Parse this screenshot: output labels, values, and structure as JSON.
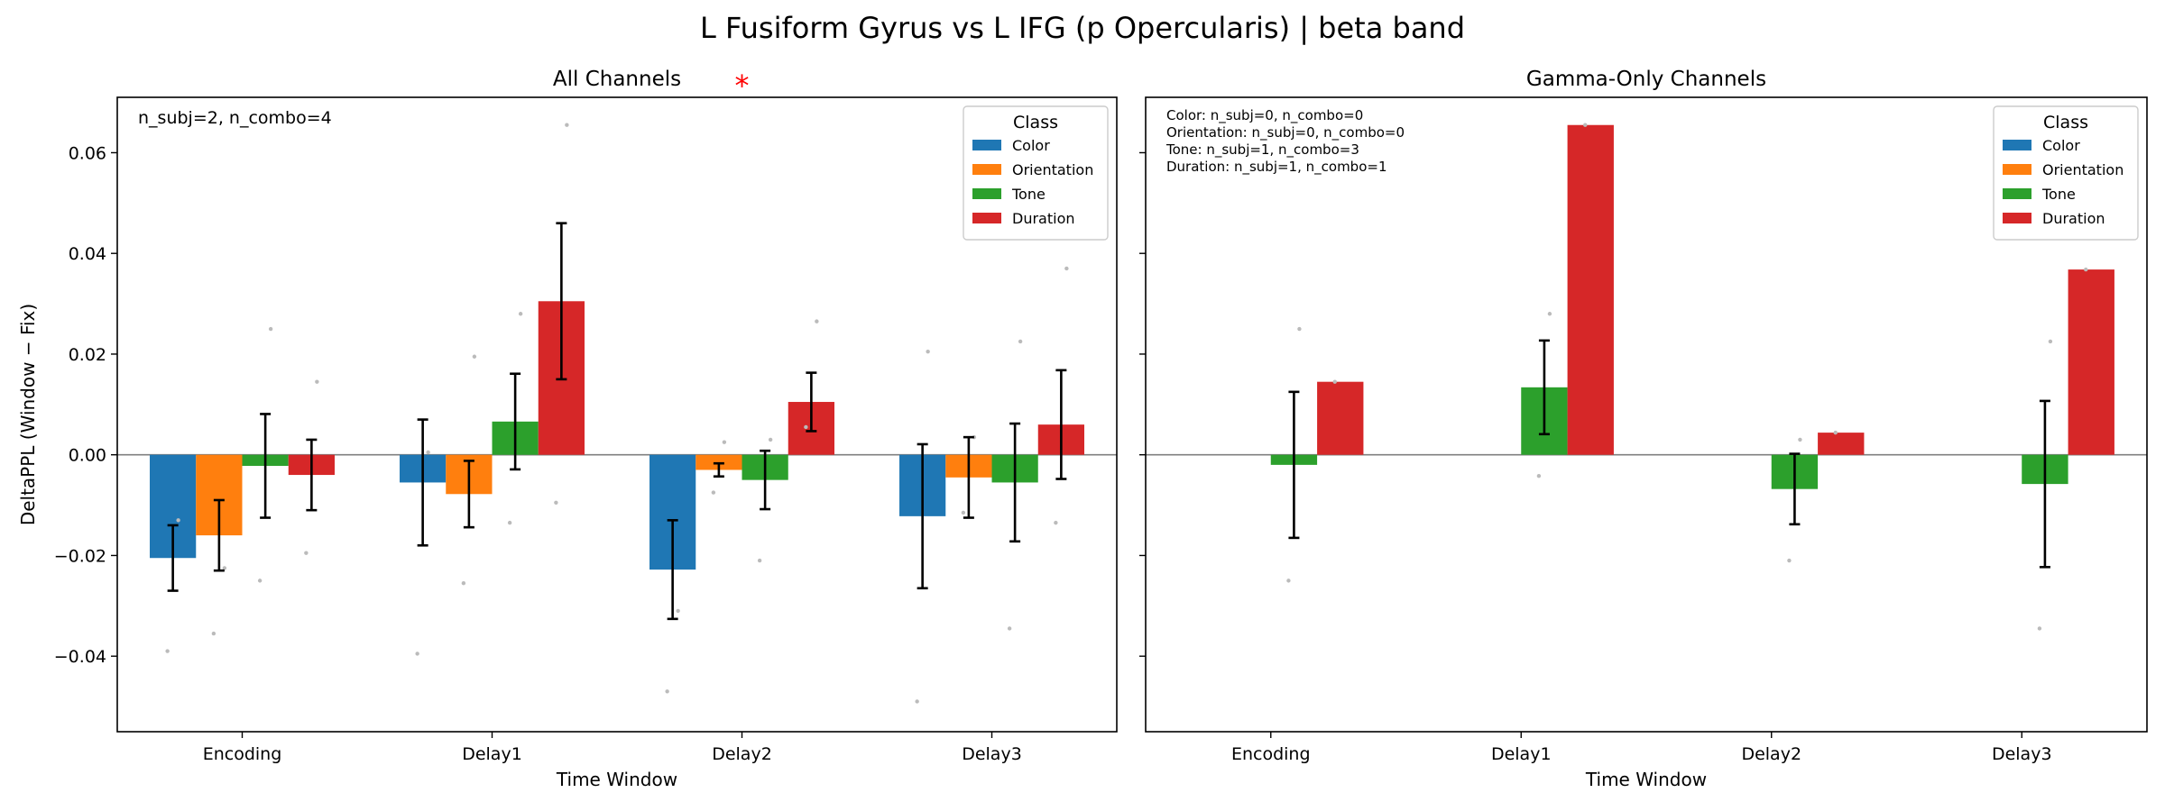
{
  "figure": {
    "title": "L Fusiform Gyrus vs L IFG (p Opercularis)  |  beta band"
  },
  "colors": {
    "Color": "#1f77b4",
    "Orientation": "#ff7f0e",
    "Tone": "#2ca02c",
    "Duration": "#d62728",
    "zero_line": "#808080",
    "error_bar": "#000000",
    "point": "#bbbbbb",
    "significance": "#ff0000"
  },
  "chart_data": [
    {
      "type": "bar",
      "title": "All Channels",
      "xlabel": "Time Window",
      "ylabel": "DeltaPPL (Window − Fix)",
      "categories": [
        "Encoding",
        "Delay1",
        "Delay2",
        "Delay3"
      ],
      "ylim": [
        -0.055,
        0.071
      ],
      "yticks": [
        -0.04,
        -0.02,
        0.0,
        0.02,
        0.04,
        0.06
      ],
      "ytick_labels": [
        "−0.04",
        "−0.02",
        "0.00",
        "0.02",
        "0.04",
        "0.06"
      ],
      "annotation": "n_subj=2, n_combo=4",
      "significance": [
        {
          "category": "Delay2",
          "label": "*"
        }
      ],
      "legend": {
        "title": "Class",
        "position": "top-right"
      },
      "series": [
        {
          "name": "Color",
          "values": [
            -0.0205,
            -0.0055,
            -0.0228,
            -0.0122
          ],
          "errors": [
            0.0065,
            0.0125,
            0.0098,
            0.0143
          ],
          "points": [
            [
              -0.039,
              -0.013
            ],
            [
              -0.0395,
              0.0005
            ],
            [
              -0.047,
              -0.031
            ],
            [
              -0.049,
              0.0205
            ]
          ]
        },
        {
          "name": "Orientation",
          "values": [
            -0.016,
            -0.0078,
            -0.003,
            -0.0045
          ],
          "errors": [
            0.007,
            0.0066,
            0.0013,
            0.008
          ],
          "points": [
            [
              -0.0355,
              -0.0225
            ],
            [
              -0.0255,
              0.0195
            ],
            [
              -0.0075,
              0.0025
            ],
            [
              -0.0115,
              0.0035
            ]
          ]
        },
        {
          "name": "Tone",
          "values": [
            -0.0022,
            0.0066,
            -0.005,
            -0.0055
          ],
          "errors": [
            0.0103,
            0.0095,
            0.0058,
            0.0117
          ],
          "points": [
            [
              -0.025,
              0.025
            ],
            [
              -0.0135,
              0.028
            ],
            [
              -0.021,
              0.003
            ],
            [
              -0.0345,
              0.0225
            ]
          ]
        },
        {
          "name": "Duration",
          "values": [
            -0.004,
            0.0305,
            0.0105,
            0.006
          ],
          "errors": [
            0.007,
            0.0155,
            0.0058,
            0.0108
          ],
          "points": [
            [
              -0.0195,
              0.0145
            ],
            [
              -0.0095,
              0.0655
            ],
            [
              0.0055,
              0.0265
            ],
            [
              -0.0135,
              0.037
            ]
          ]
        }
      ]
    },
    {
      "type": "bar",
      "title": "Gamma-Only Channels",
      "xlabel": "Time Window",
      "ylabel": "",
      "categories": [
        "Encoding",
        "Delay1",
        "Delay2",
        "Delay3"
      ],
      "ylim": [
        -0.055,
        0.071
      ],
      "yticks": [
        -0.04,
        -0.02,
        0.0,
        0.02,
        0.04,
        0.06
      ],
      "annotation_lines": [
        "Color: n_subj=0, n_combo=0",
        "Orientation: n_subj=0, n_combo=0",
        "Tone: n_subj=1, n_combo=3",
        "Duration: n_subj=1, n_combo=1"
      ],
      "legend": {
        "title": "Class",
        "position": "top-right"
      },
      "series": [
        {
          "name": "Color",
          "values": [
            null,
            null,
            null,
            null
          ],
          "errors": [
            null,
            null,
            null,
            null
          ],
          "points": [
            [],
            [],
            [],
            []
          ]
        },
        {
          "name": "Orientation",
          "values": [
            null,
            null,
            null,
            null
          ],
          "errors": [
            null,
            null,
            null,
            null
          ],
          "points": [
            [],
            [],
            [],
            []
          ]
        },
        {
          "name": "Tone",
          "values": [
            -0.002,
            0.0134,
            -0.0068,
            -0.0058
          ],
          "errors": [
            0.0145,
            0.0093,
            0.007,
            0.0165
          ],
          "points": [
            [
              -0.025,
              0.025
            ],
            [
              -0.0042,
              0.028
            ],
            [
              -0.021,
              0.003
            ],
            [
              -0.0345,
              0.0225
            ]
          ]
        },
        {
          "name": "Duration",
          "values": [
            0.0145,
            0.0655,
            0.0044,
            0.0368
          ],
          "errors": [
            null,
            null,
            null,
            null
          ],
          "points": [
            [
              0.0145
            ],
            [
              0.0655
            ],
            [
              0.0044
            ],
            [
              0.0368
            ]
          ]
        }
      ]
    }
  ]
}
